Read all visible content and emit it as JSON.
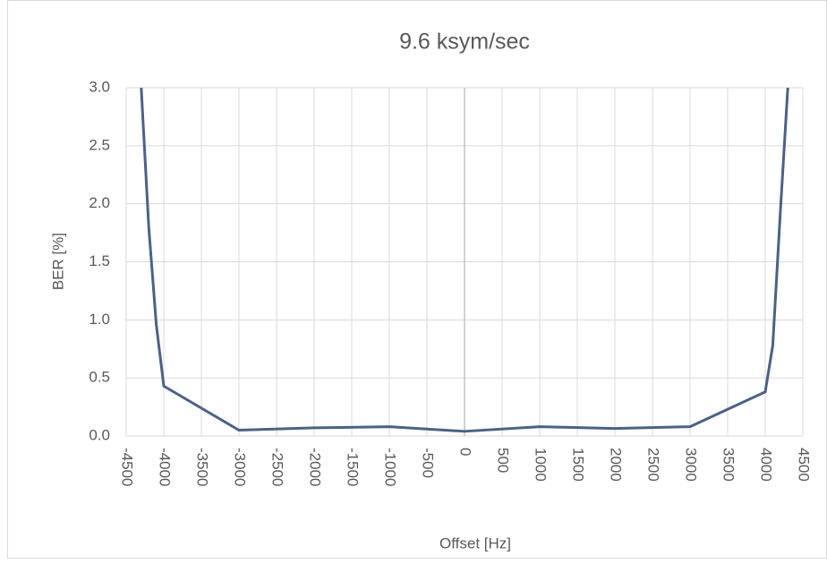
{
  "chart_data": {
    "type": "line",
    "title": "9.6 ksym/sec",
    "x_label": "Offset [Hz]",
    "y_label": "BER [%]",
    "x": [
      -4300,
      -4200,
      -4100,
      -4000,
      -3000,
      -2000,
      -1000,
      0,
      1000,
      2000,
      3000,
      4000,
      4100,
      4200,
      4300
    ],
    "series": [
      {
        "name": "BER",
        "color": "#4a6286",
        "values": [
          3.0,
          1.8,
          0.96,
          0.43,
          0.05,
          0.07,
          0.08,
          0.04,
          0.08,
          0.065,
          0.08,
          0.38,
          0.78,
          1.92,
          3.0
        ]
      }
    ],
    "xlim": [
      -4500,
      4500
    ],
    "xticks": [
      -4500,
      -4000,
      -3500,
      -3000,
      -2500,
      -2000,
      -1500,
      -1000,
      -500,
      0,
      500,
      1000,
      1500,
      2000,
      2500,
      3000,
      3500,
      4000,
      4500
    ],
    "ylim": [
      0,
      3
    ],
    "yticks": [
      {
        "value": 0,
        "label": "0.0"
      },
      {
        "value": 0.5,
        "label": "0.5"
      },
      {
        "value": 1,
        "label": "1.0"
      },
      {
        "value": 1.5,
        "label": "1.5"
      },
      {
        "value": 2,
        "label": "2.0"
      },
      {
        "value": 2.5,
        "label": "2.5"
      },
      {
        "value": 3,
        "label": "3.0"
      }
    ],
    "grid": true
  }
}
